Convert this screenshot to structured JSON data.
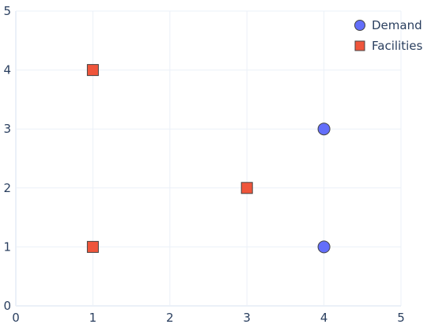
{
  "chart_data": {
    "type": "scatter",
    "title": "",
    "xlabel": "",
    "ylabel": "",
    "xlim": [
      0,
      5
    ],
    "ylim": [
      0,
      5
    ],
    "xticks": [
      0,
      1,
      2,
      3,
      4,
      5
    ],
    "yticks": [
      0,
      1,
      2,
      3,
      4,
      5
    ],
    "grid": true,
    "legend_position": "top-right",
    "series": [
      {
        "name": "Demand",
        "marker": "circle",
        "color": "#636efa",
        "points": [
          {
            "x": 4,
            "y": 3
          },
          {
            "x": 4,
            "y": 1
          }
        ]
      },
      {
        "name": "Facilities",
        "marker": "square",
        "color": "#ef553b",
        "points": [
          {
            "x": 1,
            "y": 4
          },
          {
            "x": 3,
            "y": 2
          },
          {
            "x": 1,
            "y": 1
          }
        ]
      }
    ]
  }
}
